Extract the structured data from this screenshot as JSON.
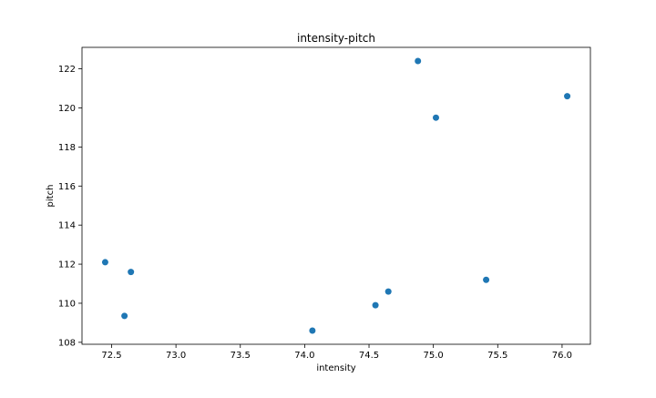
{
  "chart_data": {
    "type": "scatter",
    "title": "intensity-pitch",
    "xlabel": "intensity",
    "ylabel": "pitch",
    "xlim": [
      72.27,
      76.22
    ],
    "ylim": [
      107.9,
      123.1
    ],
    "xticks": [
      72.5,
      73.0,
      73.5,
      74.0,
      74.5,
      75.0,
      75.5,
      76.0
    ],
    "xtick_labels": [
      "72.5",
      "73.0",
      "73.5",
      "74.0",
      "74.5",
      "75.0",
      "75.5",
      "76.0"
    ],
    "yticks": [
      108,
      110,
      112,
      114,
      116,
      118,
      120,
      122
    ],
    "ytick_labels": [
      "108",
      "110",
      "112",
      "114",
      "116",
      "118",
      "120",
      "122"
    ],
    "grid": false,
    "marker_color": "#1f77b4",
    "points": [
      {
        "x": 72.45,
        "y": 112.1
      },
      {
        "x": 72.6,
        "y": 109.35
      },
      {
        "x": 72.65,
        "y": 111.6
      },
      {
        "x": 74.06,
        "y": 108.6
      },
      {
        "x": 74.55,
        "y": 109.9
      },
      {
        "x": 74.65,
        "y": 110.6
      },
      {
        "x": 74.88,
        "y": 122.4
      },
      {
        "x": 75.02,
        "y": 119.5
      },
      {
        "x": 75.41,
        "y": 111.2
      },
      {
        "x": 76.04,
        "y": 120.6
      }
    ]
  }
}
